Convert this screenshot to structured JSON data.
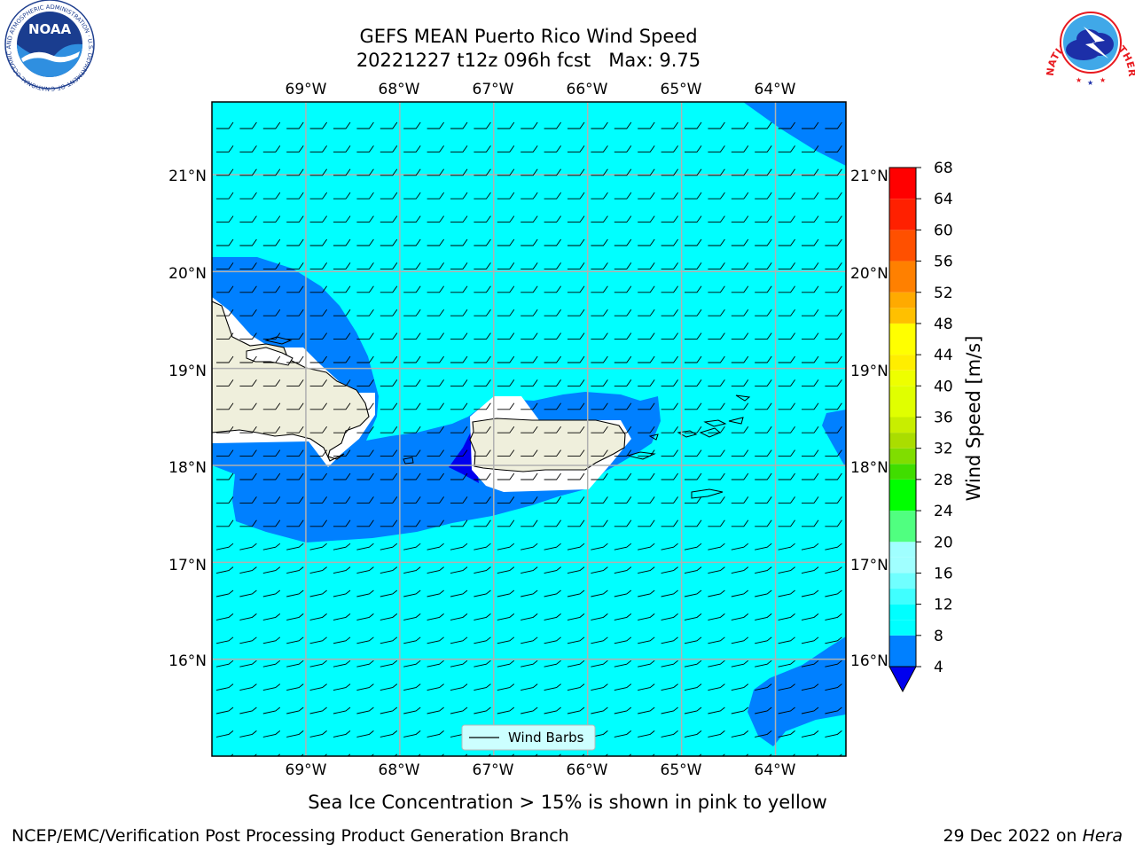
{
  "title": {
    "line1": "GEFS MEAN Puerto Rico Wind Speed",
    "line2": "20221227 t12z 096h fcst   Max: 9.75"
  },
  "map": {
    "longitude_labels": [
      "69°W",
      "68°W",
      "67°W",
      "66°W",
      "65°W",
      "64°W"
    ],
    "latitude_labels": [
      "21°N",
      "20°N",
      "19°N",
      "18°N",
      "17°N",
      "16°N"
    ],
    "longitudes": [
      -69,
      -68,
      -67,
      -66,
      -65,
      -64
    ],
    "latitudes": [
      21,
      20,
      19,
      18,
      17,
      16
    ],
    "extent": {
      "lon_min": -70.0,
      "lon_max": -63.25,
      "lat_min": 15.0,
      "lat_max": 21.75
    },
    "legend_label": "Wind Barbs",
    "wind_barb_direction": "easterly",
    "ocean_color": "#00ffff",
    "land_color": "#efefdc",
    "grid_color": "#b0b0b0"
  },
  "colorbar": {
    "label": "Wind Speed [m/s]",
    "ticks": [
      "68",
      "64",
      "60",
      "56",
      "52",
      "48",
      "44",
      "40",
      "36",
      "32",
      "28",
      "24",
      "20",
      "16",
      "12",
      "8",
      "4"
    ],
    "levels": [
      4,
      8,
      10,
      12,
      14,
      16,
      18,
      20,
      24,
      28,
      30,
      32,
      34,
      36,
      40,
      42,
      44,
      48,
      50,
      52,
      56,
      60,
      64,
      68
    ],
    "colors": [
      "#0080ff",
      "#00ffff",
      "#00ffff",
      "#40ffff",
      "#70ffff",
      "#a0ffff",
      "#a0ffff",
      "#50ff80",
      "#00ff00",
      "#40dd00",
      "#80dd00",
      "#aadd00",
      "#c8ee00",
      "#e0ff00",
      "#eeff00",
      "#ffee00",
      "#ffff00",
      "#ffc000",
      "#ffaa00",
      "#ff8000",
      "#ff5000",
      "#ff2000",
      "#ff0000"
    ],
    "under_color": "#0000ee"
  },
  "subtitle": "Sea Ice Concentration > 15% is shown in pink to yellow",
  "footer": {
    "left": "NCEP/EMC/Verification Post Processing Product Generation Branch",
    "right_date": "29 Dec 2022 on ",
    "right_host": "Hera"
  },
  "logos": {
    "noaa_text": "NOAA",
    "noaa_ring": "NATIONAL OCEANIC AND ATMOSPHERIC ADMINISTRATION · U.S. DEPARTMENT OF COMMERCE",
    "nws_ring": "NATIONAL WEATHER SERVICE"
  }
}
